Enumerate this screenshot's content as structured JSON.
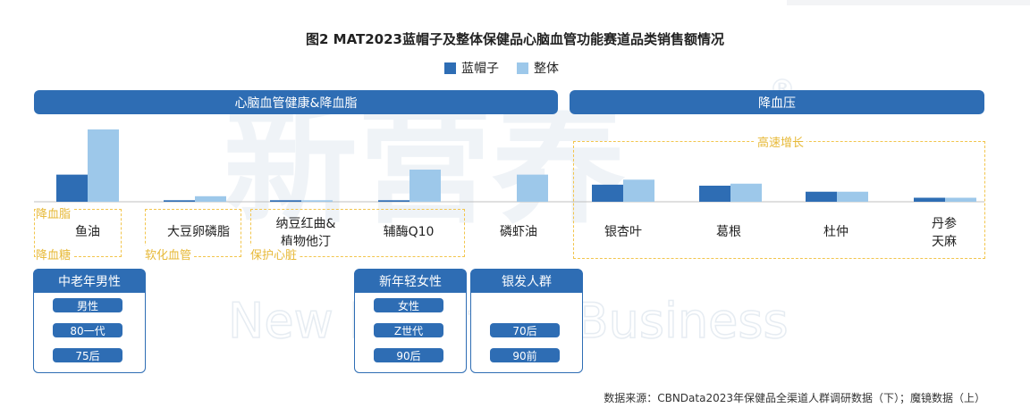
{
  "title": "图2 MAT2023蓝帽子及整体保健品心脑血管功能赛道品类销售额情况",
  "legend": {
    "series_a": "蓝帽子",
    "series_b": "整体"
  },
  "colors": {
    "series_a": "#2e6db4",
    "series_b": "#9dc8ea",
    "header": "#2e6db4",
    "highlight": "#f2c54c"
  },
  "groups": {
    "left": "心脑血管健康&降血脂",
    "right": "降血压"
  },
  "highlight_label": "高速增长",
  "categories": {
    "c0": "鱼油",
    "c1": "大豆卵磷脂",
    "c2_line1": "纳豆红曲&",
    "c2_line2": "植物他汀",
    "c3": "辅酶Q10",
    "c4": "磷虾油",
    "c5": "银杏叶",
    "c6": "葛根",
    "c7": "杜仲",
    "c8_line1": "丹参",
    "c8_line2": "天麻"
  },
  "tags": {
    "t0_top": "降血脂",
    "t0_bottom": "降血糖",
    "t1": "软化血管",
    "t2": "保护心脏"
  },
  "panels": {
    "p0": {
      "title": "中老年男性",
      "items": [
        "男性",
        "80一代",
        "75后"
      ]
    },
    "p1": {
      "title": "新年轻女性",
      "items": [
        "女性",
        "Z世代",
        "90后"
      ]
    },
    "p2": {
      "title": "银发人群",
      "items": [
        "70后",
        "90前"
      ]
    }
  },
  "watermark": {
    "cn": "新营养",
    "en": "New Nutrition Business",
    "reg": "®"
  },
  "source": "数据来源：CBNData2023年保健品全渠道人群调研数据（下）；魔镜数据（上）",
  "chart_data": {
    "type": "bar",
    "categories": [
      "鱼油",
      "大豆卵磷脂",
      "纳豆红曲&植物他汀",
      "辅酶Q10",
      "磷虾油",
      "银杏叶",
      "葛根",
      "杜仲",
      "丹参天麻"
    ],
    "series": [
      {
        "name": "蓝帽子",
        "values": [
          27,
          1.5,
          1.5,
          1.5,
          0,
          17,
          16,
          10,
          4
        ]
      },
      {
        "name": "整体",
        "values": [
          72,
          5.5,
          1.5,
          32,
          27,
          22,
          18,
          10,
          4
        ]
      }
    ],
    "ylim": [
      0,
      80
    ],
    "grid": false,
    "legend_position": "top"
  }
}
